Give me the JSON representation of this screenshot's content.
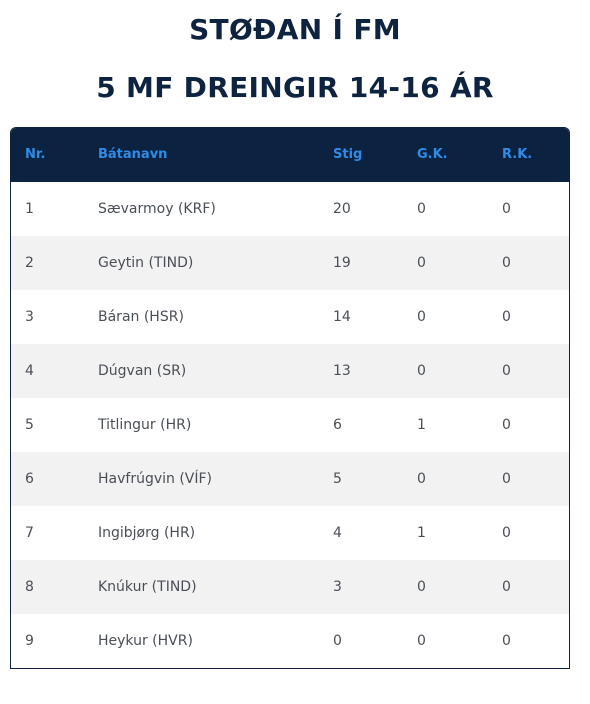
{
  "heading": {
    "line1": "STØÐAN Í FM",
    "line2": "5 MF DREINGIR 14-16 ÁR"
  },
  "table": {
    "columns": [
      "Nr.",
      "Bátanavn",
      "Stig",
      "G.K.",
      "R.K."
    ],
    "rows": [
      [
        "1",
        "Sævarmoy (KRF)",
        "20",
        "0",
        "0"
      ],
      [
        "2",
        "Geytin (TIND)",
        "19",
        "0",
        "0"
      ],
      [
        "3",
        "Báran (HSR)",
        "14",
        "0",
        "0"
      ],
      [
        "4",
        "Dúgvan (SR)",
        "13",
        "0",
        "0"
      ],
      [
        "5",
        "Titlingur (HR)",
        "6",
        "1",
        "0"
      ],
      [
        "6",
        "Havfrúgvin (VÍF)",
        "5",
        "0",
        "0"
      ],
      [
        "7",
        "Ingibjørg (HR)",
        "4",
        "1",
        "0"
      ],
      [
        "8",
        "Knúkur (TIND)",
        "3",
        "0",
        "0"
      ],
      [
        "9",
        "Heykur (HVR)",
        "0",
        "0",
        "0"
      ]
    ]
  },
  "colors": {
    "header_bg": "#0b2240",
    "header_text": "#2f8be8",
    "title_text": "#0d2340",
    "row_alt_bg": "#f2f2f2"
  }
}
